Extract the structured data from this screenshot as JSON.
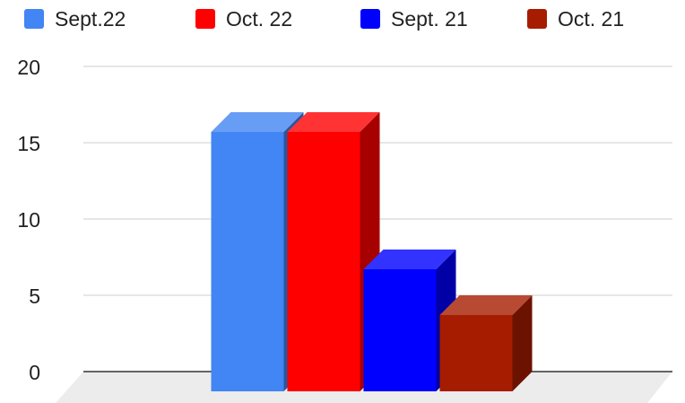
{
  "chart_data": {
    "type": "bar3d",
    "categories": [
      null
    ],
    "series": [
      {
        "name": "Sept.22",
        "color": "#4285f4",
        "values": [
          17
        ]
      },
      {
        "name": "Oct. 22",
        "color": "#ff0000",
        "values": [
          17
        ]
      },
      {
        "name": "Sept. 21",
        "color": "#0000ff",
        "values": [
          8
        ]
      },
      {
        "name": "Oct. 21",
        "color": "#a61c00",
        "values": [
          5
        ]
      }
    ],
    "ylim": [
      0,
      20
    ],
    "yticks": [
      0,
      5,
      10,
      15,
      20
    ],
    "grid": true,
    "legend": "top"
  }
}
